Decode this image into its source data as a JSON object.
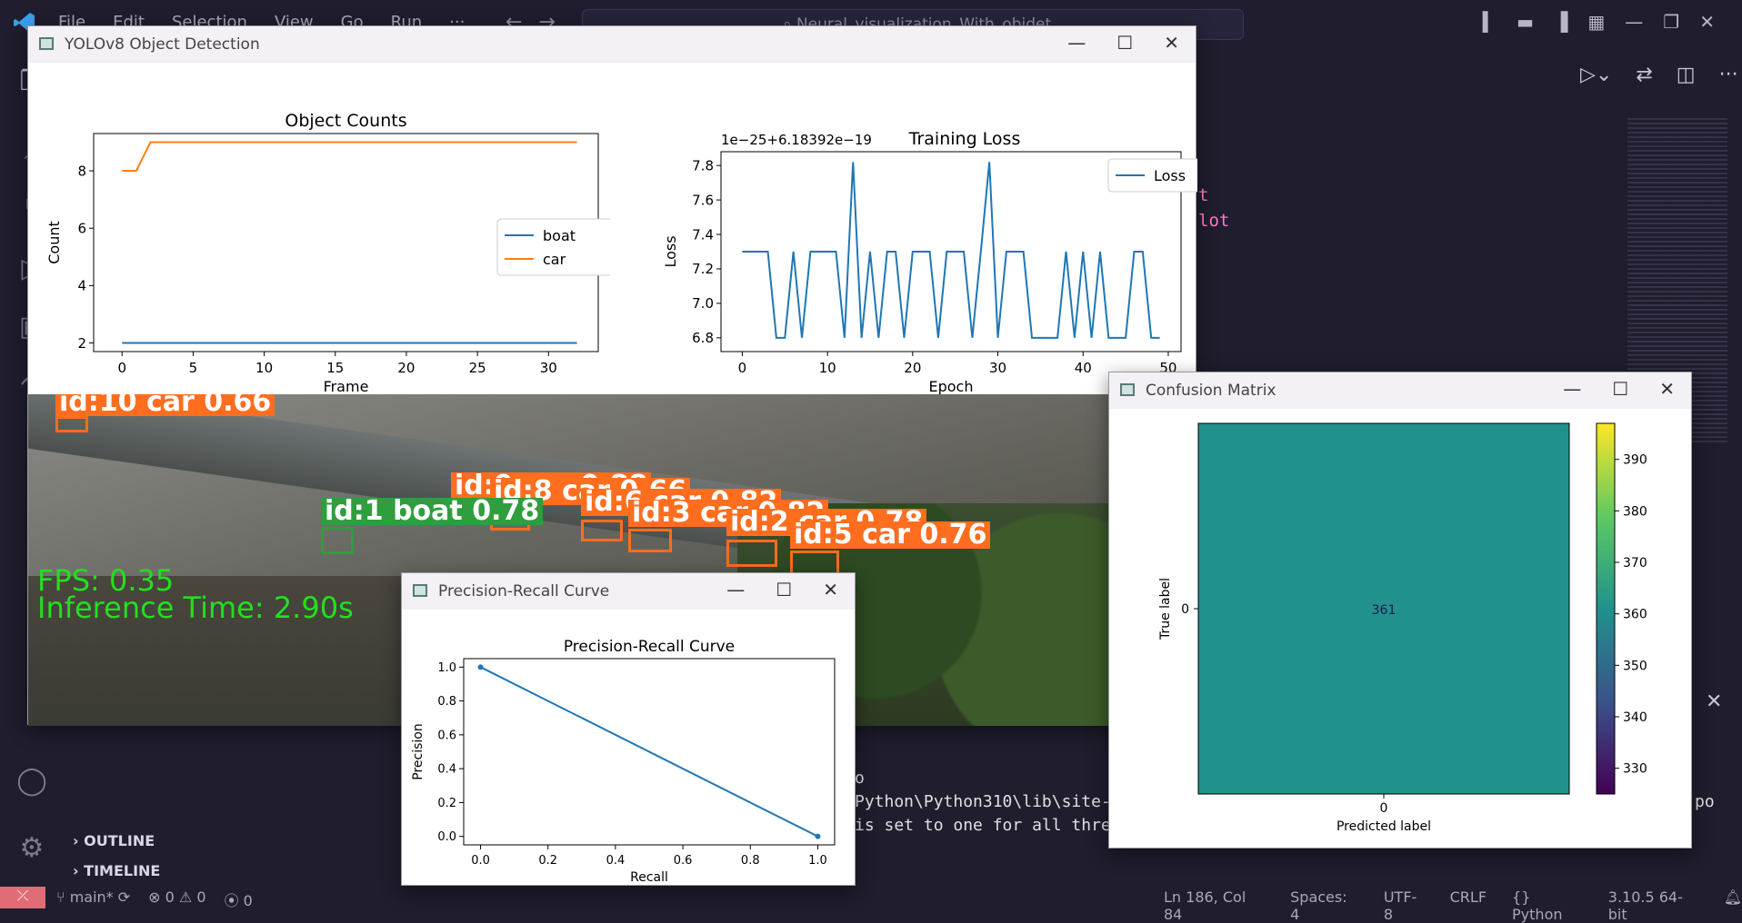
{
  "vscode": {
    "menu": [
      "File",
      "Edit",
      "Selection",
      "View",
      "Go",
      "Run",
      "···"
    ],
    "search_placeholder": "Neural_visualization_With_objdet",
    "sidebar_sections": [
      "OUTLINE",
      "TIMELINE"
    ],
    "code_lines": [
      "t",
      "lot"
    ],
    "terminal_lines": [
      "o",
      "Python\\Python310\\lib\\site-",
      "is set to one for all thre"
    ],
    "terminal_tail": "po",
    "status": {
      "branch": "main*",
      "errors": "0",
      "warnings": "0",
      "ports": "0",
      "position": "Ln 186, Col 84",
      "spaces": "Spaces: 4",
      "encoding": "UTF-8",
      "eol": "CRLF",
      "language": "Python",
      "interpreter": "3.10.5 64-bit"
    }
  },
  "yolo_window": {
    "title": "YOLOv8 Object Detection",
    "fps": "FPS: 0.35",
    "inference": "Inference Time: 2.90s",
    "detections": [
      {
        "label": "id:10 car 0.66",
        "class": "car"
      },
      {
        "label": "id:9 car 0.88",
        "class": "car"
      },
      {
        "label": "id:8 car 0.66",
        "class": "car"
      },
      {
        "label": "id:6 car 0.82",
        "class": "car"
      },
      {
        "label": "id:3 car 0.82",
        "class": "car"
      },
      {
        "label": "id:2 car 0.78",
        "class": "car"
      },
      {
        "label": "id:5 car 0.76",
        "class": "car"
      },
      {
        "label": "id:1 boat 0.78",
        "class": "boat"
      }
    ]
  },
  "chart_data": [
    {
      "type": "line",
      "title": "Object Counts",
      "xlabel": "Frame",
      "ylabel": "Count",
      "xlim": [
        -2,
        33.5
      ],
      "ylim": [
        1.7,
        9.3
      ],
      "xticks": [
        0,
        5,
        10,
        15,
        20,
        25,
        30
      ],
      "yticks": [
        2,
        4,
        6,
        8
      ],
      "legend": "center-right",
      "series": [
        {
          "name": "boat",
          "color": "#1f77b4",
          "x": [
            0,
            32
          ],
          "y": [
            2,
            2
          ]
        },
        {
          "name": "car",
          "color": "#ff7f0e",
          "x": [
            0,
            1,
            2,
            32
          ],
          "y": [
            8,
            8,
            9,
            9
          ]
        }
      ]
    },
    {
      "type": "line",
      "title": "Training Loss",
      "offset_label": "1e−25+6.18392e−19",
      "xlabel": "Epoch",
      "ylabel": "Loss",
      "xlim": [
        -2.5,
        51.5
      ],
      "ylim": [
        6.72,
        7.88
      ],
      "xticks": [
        0,
        10,
        20,
        30,
        40,
        50
      ],
      "yticks": [
        6.8,
        7.0,
        7.2,
        7.4,
        7.6,
        7.8
      ],
      "legend": "top-right",
      "series": [
        {
          "name": "Loss",
          "color": "#1f77b4",
          "x": [
            0,
            1,
            2,
            3,
            4,
            5,
            6,
            7,
            8,
            9,
            10,
            11,
            12,
            13,
            14,
            15,
            16,
            17,
            18,
            19,
            20,
            21,
            22,
            23,
            24,
            25,
            26,
            27,
            28,
            29,
            30,
            31,
            32,
            33,
            34,
            35,
            36,
            37,
            38,
            39,
            40,
            41,
            42,
            43,
            44,
            45,
            46,
            47,
            48,
            49
          ],
          "y": [
            7.3,
            7.3,
            7.3,
            7.3,
            6.8,
            6.8,
            7.3,
            6.8,
            7.3,
            7.3,
            7.3,
            7.3,
            6.8,
            7.82,
            6.8,
            7.3,
            6.8,
            7.3,
            7.3,
            6.8,
            7.3,
            7.3,
            7.3,
            6.8,
            7.3,
            7.3,
            7.3,
            6.8,
            7.3,
            7.82,
            6.8,
            7.3,
            7.3,
            7.3,
            6.8,
            6.8,
            6.8,
            6.8,
            7.3,
            6.8,
            7.3,
            6.8,
            7.3,
            6.8,
            6.8,
            6.8,
            7.3,
            7.3,
            6.8,
            6.8
          ]
        }
      ]
    },
    {
      "type": "line",
      "title": "Precision-Recall Curve",
      "window_title": "Precision-Recall Curve",
      "xlabel": "Recall",
      "ylabel": "Precision",
      "xlim": [
        -0.05,
        1.05
      ],
      "ylim": [
        -0.05,
        1.05
      ],
      "xticks": [
        0.0,
        0.2,
        0.4,
        0.6,
        0.8,
        1.0
      ],
      "yticks": [
        0.0,
        0.2,
        0.4,
        0.6,
        0.8,
        1.0
      ],
      "series": [
        {
          "color": "#1f77b4",
          "x": [
            0.0,
            1.0
          ],
          "y": [
            1.0,
            0.0
          ]
        }
      ]
    },
    {
      "type": "heatmap",
      "window_title": "Confusion Matrix",
      "xlabel": "Predicted label",
      "ylabel": "True label",
      "xticks": [
        "0"
      ],
      "yticks": [
        "0"
      ],
      "values": [
        [
          361
        ]
      ],
      "cell_color": "#21918c",
      "colorbar": {
        "min": 325,
        "max": 397,
        "ticks": [
          330,
          340,
          350,
          360,
          370,
          380,
          390
        ]
      }
    }
  ]
}
